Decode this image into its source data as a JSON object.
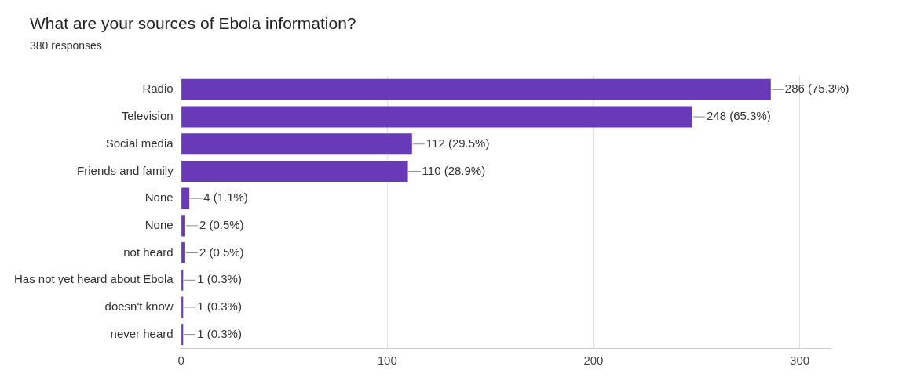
{
  "chart_data": {
    "type": "bar",
    "orientation": "horizontal",
    "title": "What are your sources of Ebola information?",
    "subtitle": "380 responses",
    "categories": [
      "Radio",
      "Television",
      "Social media",
      "Friends and family",
      "None",
      "None",
      "not heard",
      "Has not yet heard about Ebola",
      "doesn't know",
      "never heard"
    ],
    "values": [
      286,
      248,
      112,
      110,
      4,
      2,
      2,
      1,
      1,
      1
    ],
    "value_labels": [
      "286 (75.3%)",
      "248 (65.3%)",
      "112 (29.5%)",
      "110 (28.9%)",
      "4 (1.1%)",
      "2 (0.5%)",
      "2 (0.5%)",
      "1 (0.3%)",
      "1 (0.3%)",
      "1 (0.3%)"
    ],
    "color": "#673ab7",
    "xlim": [
      0,
      315
    ],
    "xticks": [
      0,
      100,
      200,
      300
    ],
    "grid": "x",
    "legend": false
  }
}
